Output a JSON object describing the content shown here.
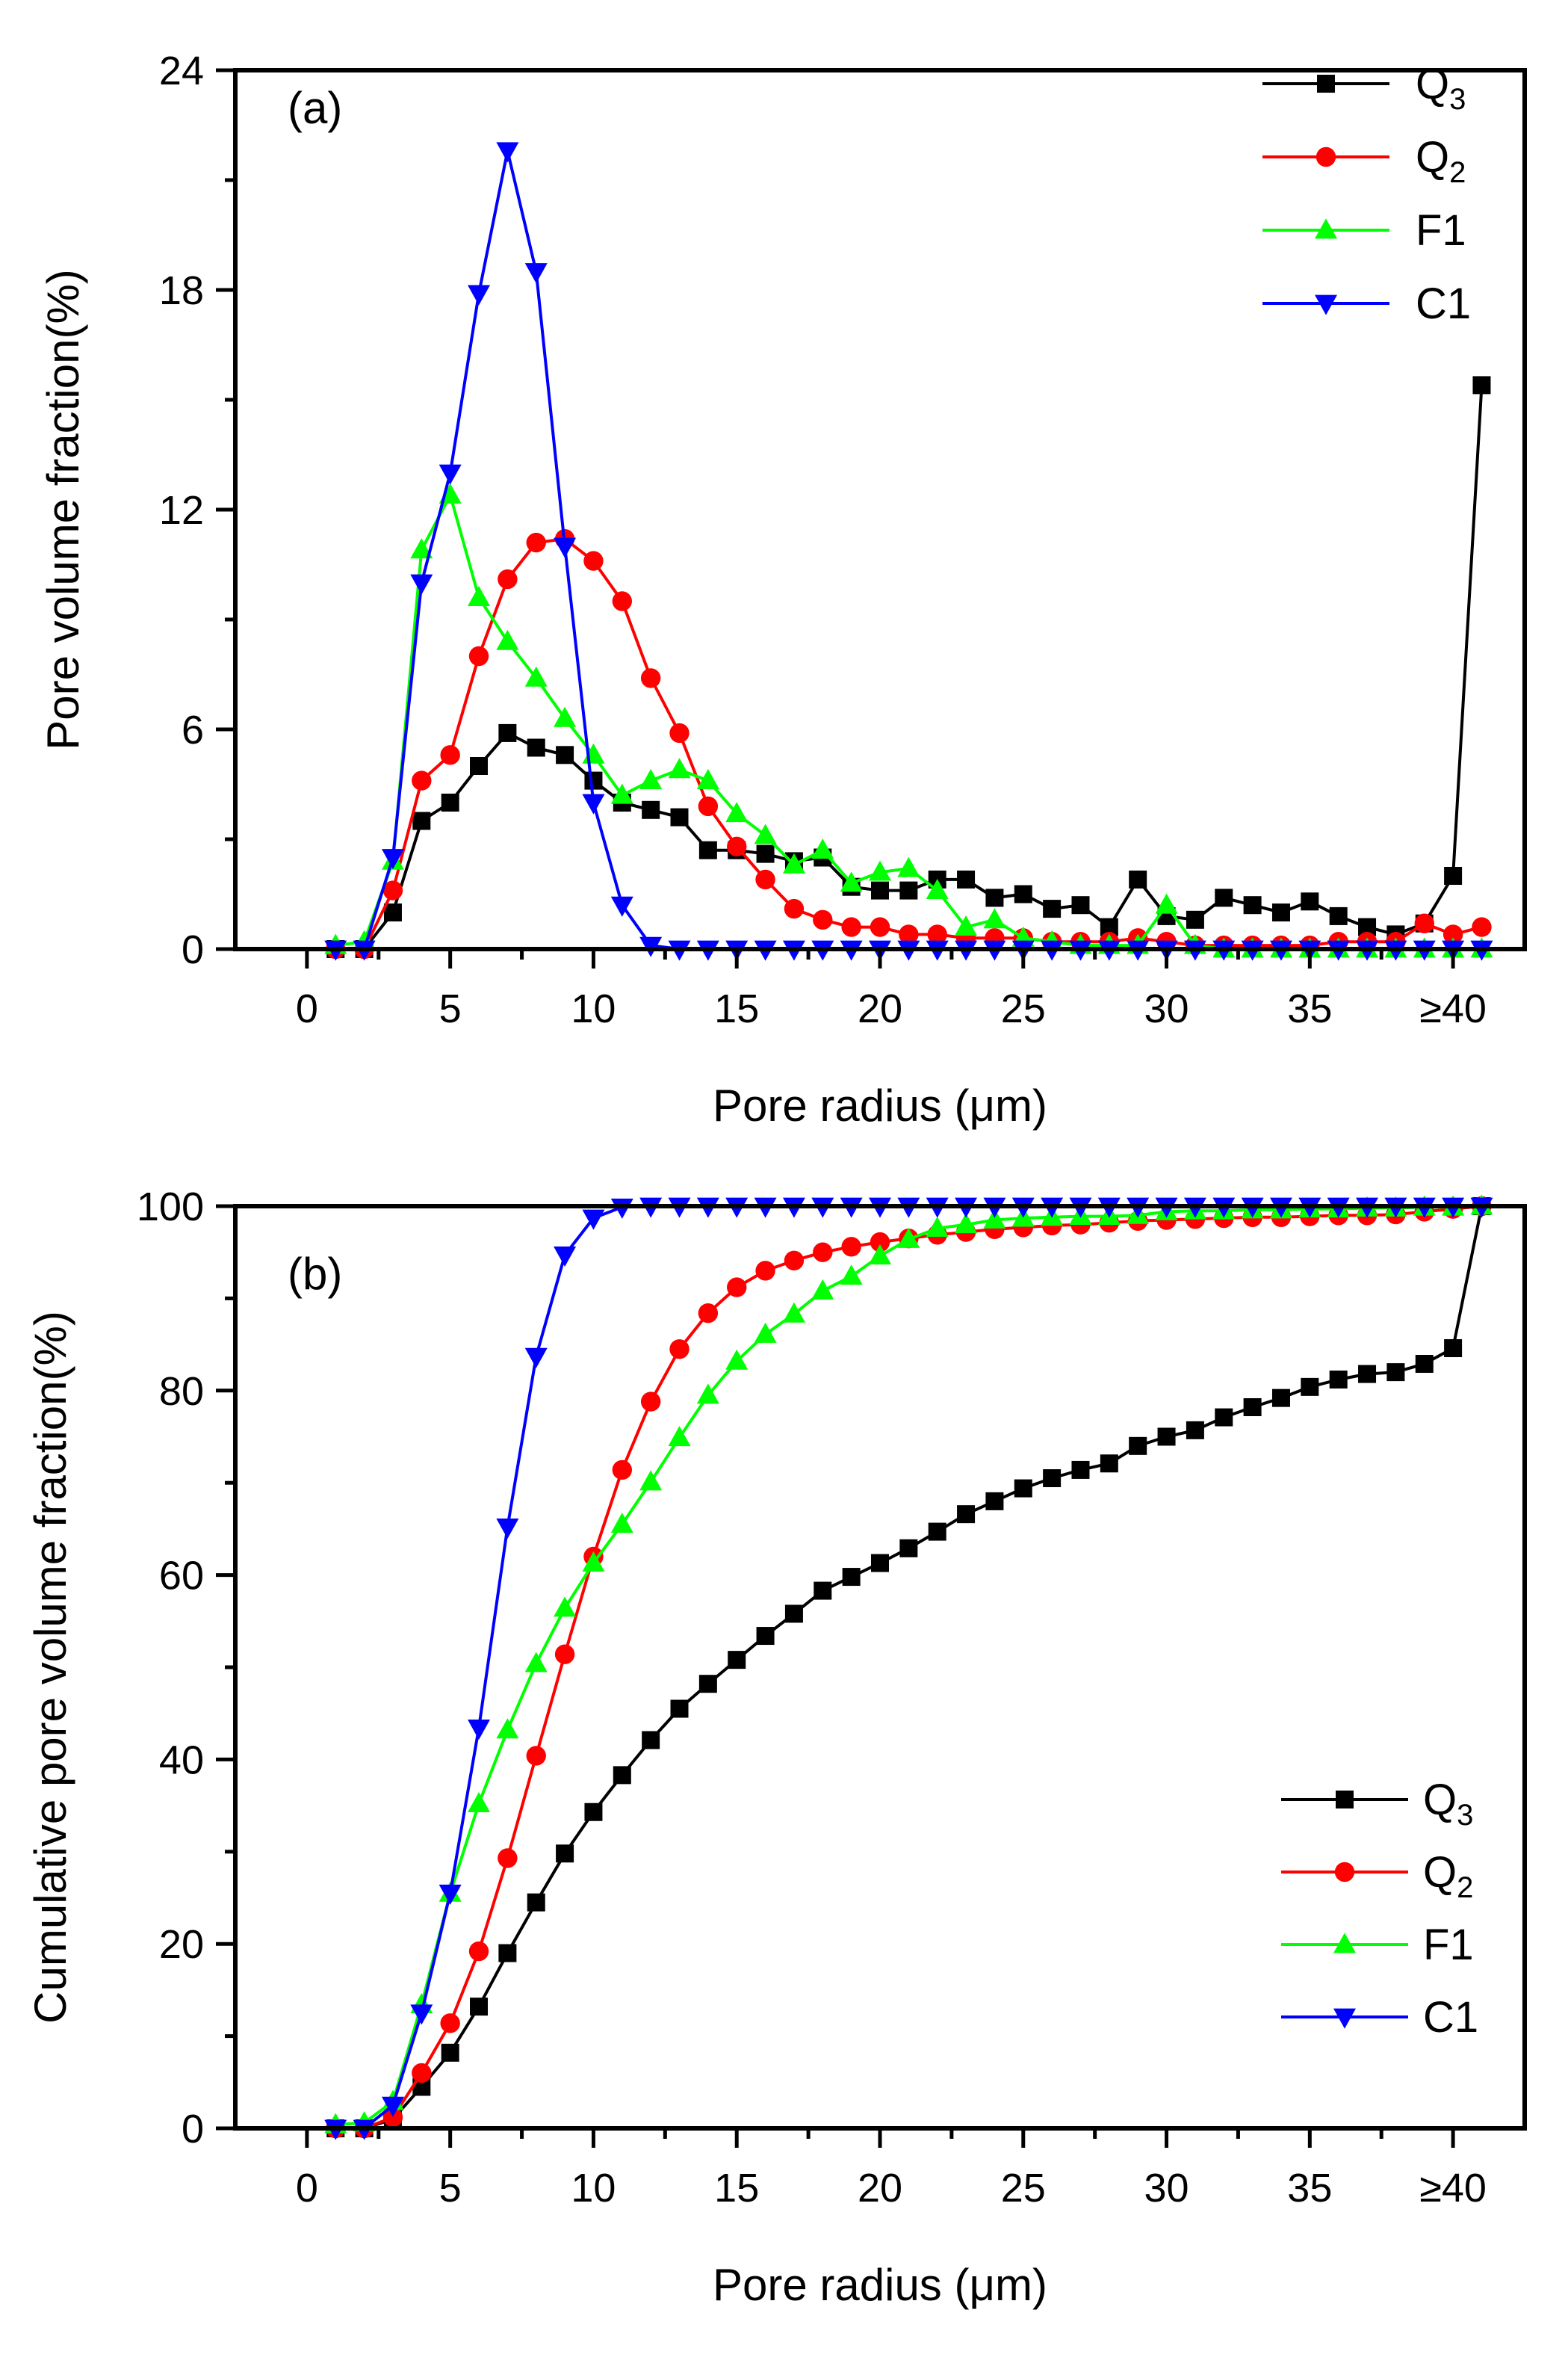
{
  "chart_data": [
    {
      "type": "line",
      "panel_label": "(a)",
      "xlabel": "Pore radius (μm)",
      "ylabel": "Pore volume fraction(%)",
      "xlim": [
        -2.5,
        42.5
      ],
      "ylim": [
        0,
        24
      ],
      "x_ticks": [
        {
          "x": 0,
          "label": "0"
        },
        {
          "x": 5,
          "label": "5"
        },
        {
          "x": 10,
          "label": "10"
        },
        {
          "x": 15,
          "label": "15"
        },
        {
          "x": 20,
          "label": "20"
        },
        {
          "x": 25,
          "label": "25"
        },
        {
          "x": 30,
          "label": "30"
        },
        {
          "x": 35,
          "label": "35"
        },
        {
          "x": 40,
          "label": "≥40"
        }
      ],
      "y_ticks": [
        {
          "y": 0,
          "label": "0"
        },
        {
          "y": 6,
          "label": "6"
        },
        {
          "y": 12,
          "label": "12"
        },
        {
          "y": 18,
          "label": "18"
        },
        {
          "y": 24,
          "label": "24"
        }
      ],
      "x": [
        1,
        2,
        3,
        4,
        5,
        6,
        7,
        8,
        9,
        10,
        11,
        12,
        13,
        14,
        15,
        16,
        17,
        18,
        19,
        20,
        21,
        22,
        23,
        24,
        25,
        26,
        27,
        28,
        29,
        30,
        31,
        32,
        33,
        34,
        35,
        36,
        37,
        38,
        39,
        40,
        41
      ],
      "legend_position": "top-right",
      "series": [
        {
          "name": "Q",
          "sub": "3",
          "color": "#000000",
          "marker": "square",
          "values": [
            0,
            0,
            1,
            3.5,
            4,
            5,
            5.9,
            5.5,
            5.3,
            4.6,
            4,
            3.8,
            3.6,
            2.7,
            2.7,
            2.6,
            2.4,
            2.5,
            1.7,
            1.6,
            1.6,
            1.9,
            1.9,
            1.4,
            1.5,
            1.1,
            1.2,
            0.6,
            1.9,
            0.9,
            0.8,
            1.4,
            1.2,
            1,
            1.3,
            0.9,
            0.6,
            0.4,
            0.7,
            2,
            15.4
          ]
        },
        {
          "name": "Q",
          "sub": "2",
          "color": "#ff0000",
          "marker": "circle",
          "values": [
            0,
            0,
            1.6,
            4.6,
            5.3,
            8,
            10.1,
            11.1,
            11.2,
            10.6,
            9.5,
            7.4,
            5.9,
            3.9,
            2.8,
            1.9,
            1.1,
            0.8,
            0.6,
            0.6,
            0.4,
            0.4,
            0.3,
            0.3,
            0.3,
            0.2,
            0.2,
            0.2,
            0.3,
            0.2,
            0.1,
            0.1,
            0.1,
            0.1,
            0.1,
            0.2,
            0.2,
            0.2,
            0.7,
            0.4,
            0.6
          ]
        },
        {
          "name": "F1",
          "sub": "",
          "color": "#00ff00",
          "marker": "triangle-up",
          "values": [
            0.1,
            0.2,
            2.4,
            10.9,
            12.4,
            9.6,
            8.4,
            7.4,
            6.3,
            5.3,
            4.2,
            4.6,
            4.9,
            4.6,
            3.7,
            3.1,
            2.3,
            2.7,
            1.8,
            2.1,
            2.2,
            1.6,
            0.6,
            0.8,
            0.3,
            0.2,
            0.1,
            0.1,
            0.1,
            1.2,
            0.1,
            0,
            0,
            0,
            0,
            0,
            0,
            0,
            0,
            0,
            0
          ]
        },
        {
          "name": "C1",
          "sub": "",
          "color": "#0000ff",
          "marker": "triangle-down",
          "values": [
            0,
            0,
            2.5,
            10,
            13,
            17.9,
            21.8,
            18.5,
            11,
            4,
            1.2,
            0.1,
            0,
            0,
            0,
            0,
            0,
            0,
            0,
            0,
            0,
            0,
            0,
            0,
            0,
            0,
            0,
            0,
            0,
            0,
            0,
            0,
            0,
            0,
            0,
            0,
            0,
            0,
            0,
            0,
            0
          ]
        }
      ]
    },
    {
      "type": "line",
      "panel_label": "(b)",
      "xlabel": "Pore radius (μm)",
      "ylabel": "Cumulative pore volume fraction(%)",
      "xlim": [
        -2.5,
        42.5
      ],
      "ylim": [
        0,
        100
      ],
      "x_ticks": [
        {
          "x": 0,
          "label": "0"
        },
        {
          "x": 5,
          "label": "5"
        },
        {
          "x": 10,
          "label": "10"
        },
        {
          "x": 15,
          "label": "15"
        },
        {
          "x": 20,
          "label": "20"
        },
        {
          "x": 25,
          "label": "25"
        },
        {
          "x": 30,
          "label": "30"
        },
        {
          "x": 35,
          "label": "35"
        },
        {
          "x": 40,
          "label": "≥40"
        }
      ],
      "y_ticks": [
        {
          "y": 0,
          "label": "0"
        },
        {
          "y": 20,
          "label": "20"
        },
        {
          "y": 40,
          "label": "40"
        },
        {
          "y": 60,
          "label": "60"
        },
        {
          "y": 80,
          "label": "80"
        },
        {
          "y": 100,
          "label": "100"
        }
      ],
      "x": [
        1,
        2,
        3,
        4,
        5,
        6,
        7,
        8,
        9,
        10,
        11,
        12,
        13,
        14,
        15,
        16,
        17,
        18,
        19,
        20,
        21,
        22,
        23,
        24,
        25,
        26,
        27,
        28,
        29,
        30,
        31,
        32,
        33,
        34,
        35,
        36,
        37,
        38,
        39,
        40,
        41
      ],
      "legend_position": "bottom-right",
      "series": [
        {
          "name": "Q",
          "sub": "3",
          "color": "#000000",
          "marker": "square",
          "values": [
            0,
            0,
            1,
            4.5,
            8.2,
            13.2,
            19,
            24.5,
            29.8,
            34.3,
            38.3,
            42.1,
            45.5,
            48.2,
            50.8,
            53.4,
            55.8,
            58.3,
            59.8,
            61.3,
            62.9,
            64.7,
            66.6,
            68,
            69.4,
            70.5,
            71.4,
            72.1,
            74,
            75,
            75.7,
            77.1,
            78.2,
            79.2,
            80.4,
            81.2,
            81.8,
            82,
            82.9,
            84.6,
            100
          ]
        },
        {
          "name": "Q",
          "sub": "2",
          "color": "#ff0000",
          "marker": "circle",
          "values": [
            0,
            0,
            1.2,
            6,
            11.4,
            19.2,
            29.3,
            40.4,
            51.4,
            62,
            71.4,
            78.8,
            84.5,
            88.4,
            91.2,
            93,
            94.1,
            95,
            95.6,
            96.1,
            96.5,
            96.9,
            97.2,
            97.5,
            97.7,
            97.9,
            98,
            98.2,
            98.4,
            98.5,
            98.6,
            98.7,
            98.8,
            98.8,
            98.9,
            99,
            99,
            99.1,
            99.4,
            99.7,
            100
          ]
        },
        {
          "name": "F1",
          "sub": "",
          "color": "#00ff00",
          "marker": "triangle-up",
          "values": [
            0.4,
            0.6,
            2.9,
            13.4,
            25.5,
            35.2,
            43.2,
            50.4,
            56.4,
            61.3,
            65.5,
            70.1,
            74.9,
            79.5,
            83.2,
            86.1,
            88.3,
            90.8,
            92.4,
            94.6,
            96.4,
            97.6,
            98,
            98.5,
            98.7,
            98.8,
            98.9,
            98.9,
            99,
            99.4,
            99.5,
            99.5,
            99.6,
            99.6,
            99.7,
            99.7,
            99.8,
            99.8,
            99.9,
            99.9,
            100
          ]
        },
        {
          "name": "C1",
          "sub": "",
          "color": "#0000ff",
          "marker": "triangle-down",
          "values": [
            0,
            0,
            2.5,
            12.5,
            25.5,
            43.4,
            65.2,
            83.7,
            94.7,
            98.7,
            99.9,
            100,
            100,
            100,
            100,
            100,
            100,
            100,
            100,
            100,
            100,
            100,
            100,
            100,
            100,
            100,
            100,
            100,
            100,
            100,
            100,
            100,
            100,
            100,
            100,
            100,
            100,
            100,
            100,
            100,
            100
          ]
        }
      ]
    }
  ]
}
